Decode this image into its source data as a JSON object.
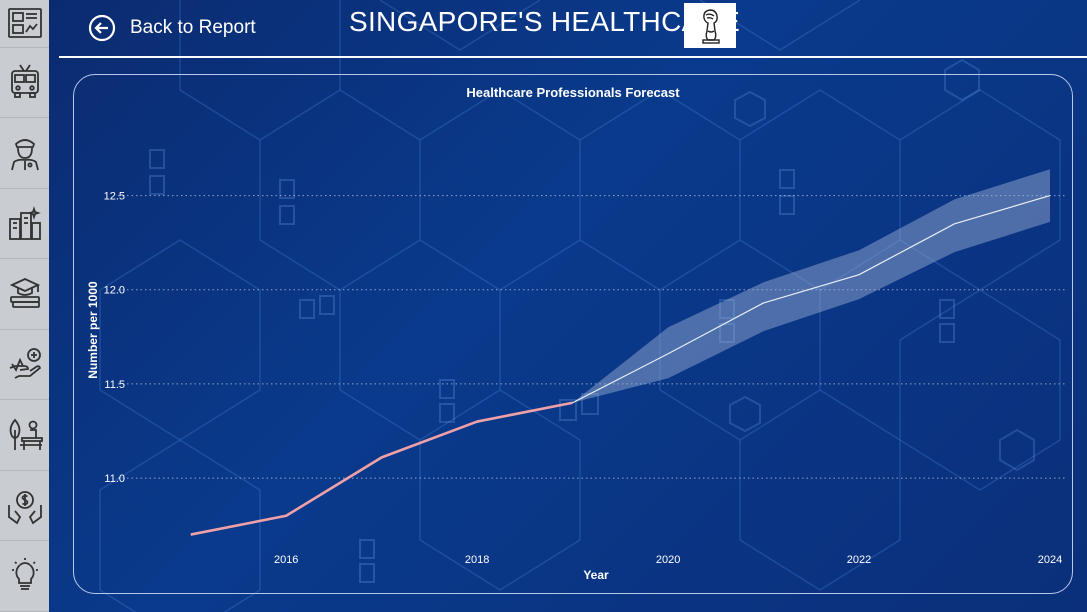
{
  "header": {
    "back_label": "Back to Report",
    "title": "SINGAPORE'S HEALTHCARE"
  },
  "sidebar": {
    "items": [
      {
        "icon": "dashboard-icon"
      },
      {
        "icon": "bus-icon"
      },
      {
        "icon": "police-officer-icon"
      },
      {
        "icon": "city-buildings-icon"
      },
      {
        "icon": "graduation-books-icon"
      },
      {
        "icon": "healthcare-hand-icon"
      },
      {
        "icon": "park-bench-icon"
      },
      {
        "icon": "money-hands-icon"
      },
      {
        "icon": "lightbulb-icon"
      }
    ]
  },
  "colors": {
    "actual_line": "#f0a0a8",
    "forecast_line": "#e8eef8",
    "confidence_band": "#9fb4d6",
    "sidebar_bg": "#c9ccd1",
    "background": "#0a3a8c"
  },
  "chart_data": {
    "type": "line",
    "title": "Healthcare Professionals Forecast",
    "xlabel": "Year",
    "ylabel": "Number per 1000",
    "xlim": [
      2014.5,
      2024
    ],
    "ylim": [
      10.65,
      12.88
    ],
    "x_ticks": [
      2016,
      2018,
      2020,
      2022,
      2024
    ],
    "y_ticks": [
      11.0,
      11.5,
      12.0,
      12.5
    ],
    "y_tick_labels": [
      "11.0",
      "11.5",
      "12.0",
      "12.5"
    ],
    "grid": "horizontal-dotted",
    "series": [
      {
        "kind": "actual",
        "x": [
          2015,
          2016,
          2017,
          2018,
          2019
        ],
        "values": [
          10.7,
          10.8,
          11.11,
          11.3,
          11.4
        ]
      },
      {
        "kind": "forecast",
        "x": [
          2019,
          2020,
          2021,
          2022,
          2023,
          2024
        ],
        "values": [
          11.4,
          11.66,
          11.93,
          12.08,
          12.35,
          12.5
        ],
        "lower": [
          11.4,
          11.53,
          11.78,
          11.95,
          12.2,
          12.36
        ],
        "upper": [
          11.4,
          11.8,
          12.04,
          12.21,
          12.48,
          12.64
        ]
      }
    ]
  }
}
